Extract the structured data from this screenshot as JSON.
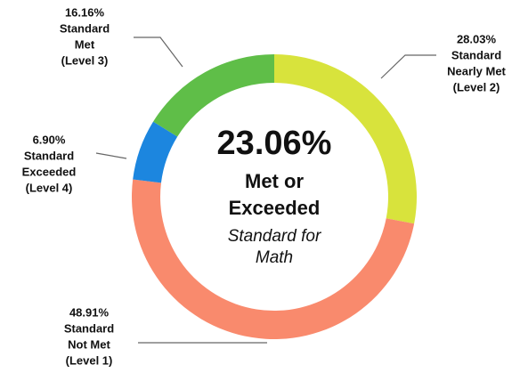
{
  "chart_data": {
    "type": "pie",
    "donut": true,
    "categories": [
      [
        "Standard",
        "Nearly Met",
        "(Level 2)"
      ],
      [
        "Standard",
        "Not Met",
        "(Level 1)"
      ],
      [
        "Standard",
        "Exceeded",
        "(Level 4)"
      ],
      [
        "Standard",
        "Met",
        "(Level 3)"
      ]
    ],
    "values": [
      28.03,
      48.91,
      6.9,
      16.16
    ],
    "value_labels": [
      "28.03%",
      "48.91%",
      "6.90%",
      "16.16%"
    ],
    "colors": [
      "#d8e33c",
      "#f98a6d",
      "#1c86df",
      "#5fbe48"
    ],
    "center": {
      "value": 23.06,
      "label": "23.06%",
      "lines": [
        "Met or",
        "Exceeded"
      ],
      "sublines": [
        "Standard for",
        "Math"
      ]
    }
  }
}
